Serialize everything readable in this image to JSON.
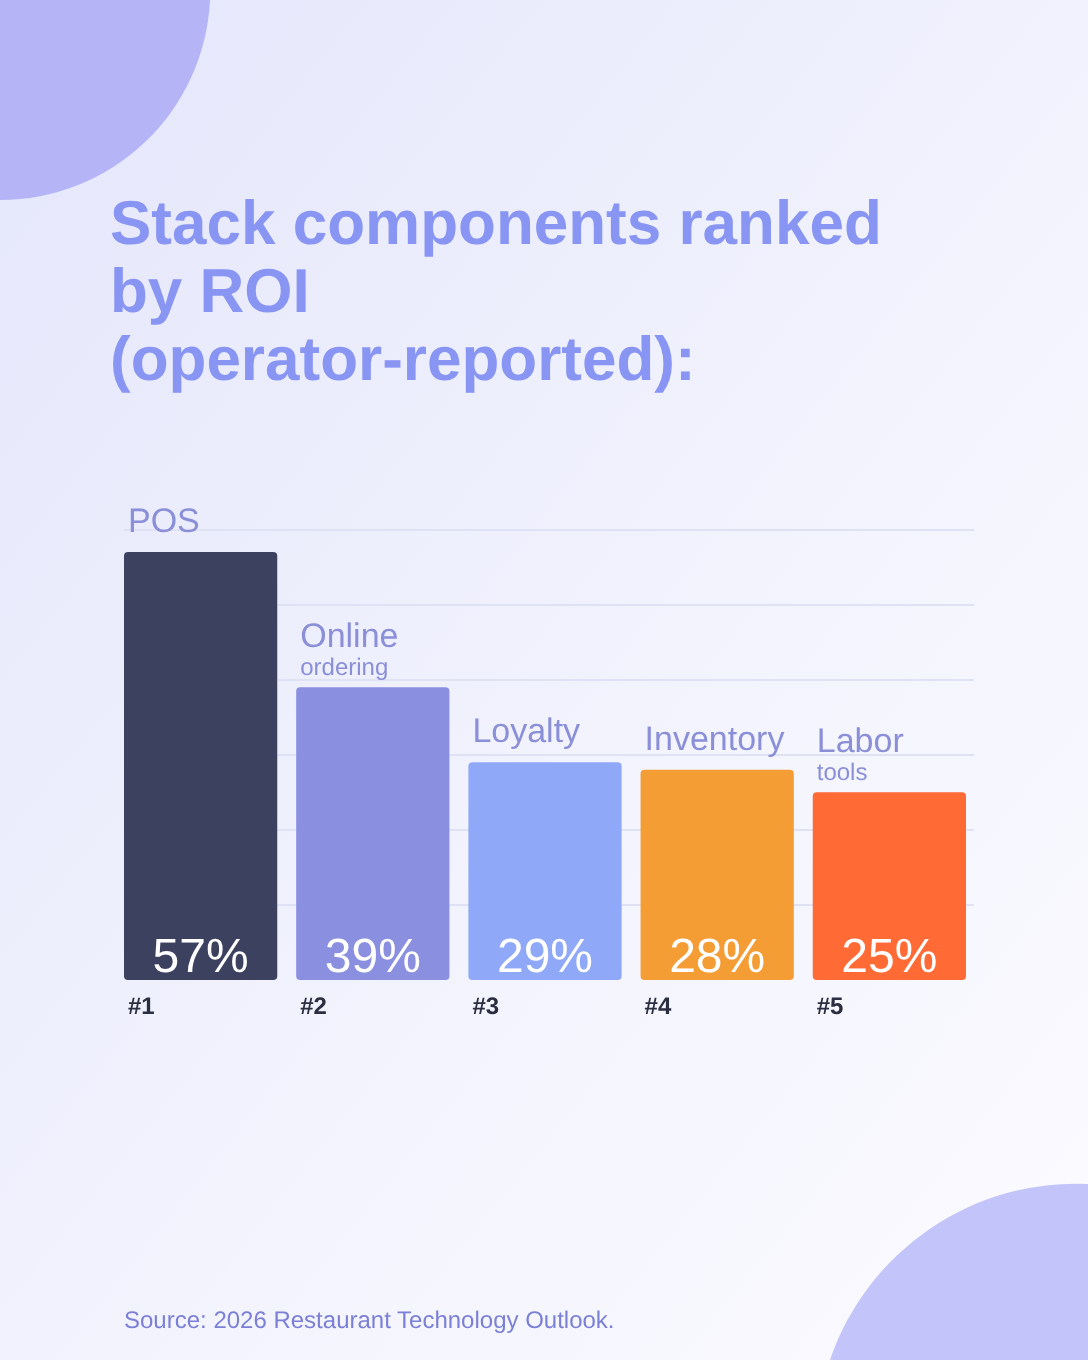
{
  "chart_data": {
    "type": "bar",
    "title": "Stack components ranked by ROI (operator-reported):",
    "categories": [
      "POS",
      "Online ordering",
      "Loyalty",
      "Inventory",
      "Labor tools"
    ],
    "values": [
      57,
      39,
      29,
      28,
      25
    ],
    "colors": [
      "#3d4160",
      "#8a8fe0",
      "#8fa8f8",
      "#f59d35",
      "#ff6a35"
    ],
    "value_labels": [
      "57%",
      "39%",
      "29%",
      "28%",
      "25%"
    ],
    "grid": true,
    "annotations": [
      "#1",
      "#2",
      "#3",
      "#4",
      "#5",
      "Source: 2026 Restaurant Technology Outlook."
    ]
  }
}
